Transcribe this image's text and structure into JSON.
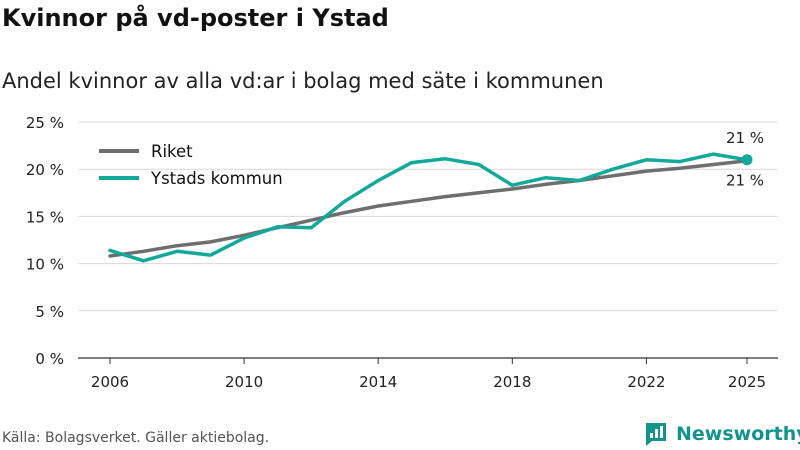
{
  "header": {
    "title": "Kvinnor på vd-poster i Ystad",
    "subtitle": "Andel kvinnor av alla vd:ar i bolag med säte i kommunen"
  },
  "footer": {
    "source": "Källa: Bolagsverket. Gäller aktiebolag.",
    "brand": "Newsworthy",
    "brand_icon": "newsworthy-logo-icon",
    "brand_color": "#12948a"
  },
  "chart_data": {
    "type": "line",
    "title": "Kvinnor på vd-poster i Ystad",
    "subtitle": "Andel kvinnor av alla vd:ar i bolag med säte i kommunen",
    "xlabel": "",
    "ylabel": "",
    "ylim": [
      0,
      25
    ],
    "xlim": [
      2006,
      2025
    ],
    "yticks": [
      0,
      5,
      10,
      15,
      20,
      25
    ],
    "ytick_labels": [
      "0 %",
      "5 %",
      "10 %",
      "15 %",
      "20 %",
      "25 %"
    ],
    "xticks": [
      2006,
      2010,
      2014,
      2018,
      2022,
      2025
    ],
    "xtick_labels": [
      "2006",
      "2010",
      "2014",
      "2018",
      "2022",
      "2025"
    ],
    "grid": true,
    "legend": "top-left",
    "x": [
      2006,
      2007,
      2008,
      2009,
      2010,
      2011,
      2012,
      2013,
      2014,
      2015,
      2016,
      2017,
      2018,
      2019,
      2020,
      2021,
      2022,
      2023,
      2024,
      2025
    ],
    "series": [
      {
        "name": "Riket",
        "color": "#6e6e6e",
        "values": [
          10.8,
          11.3,
          11.9,
          12.3,
          13.0,
          13.8,
          14.6,
          15.4,
          16.1,
          16.6,
          17.1,
          17.5,
          17.9,
          18.4,
          18.8,
          19.3,
          19.8,
          20.1,
          20.5,
          20.9
        ]
      },
      {
        "name": "Ystads kommun",
        "color": "#12a99b",
        "values": [
          11.4,
          10.3,
          11.3,
          10.9,
          12.7,
          13.9,
          13.8,
          16.6,
          18.8,
          20.7,
          21.1,
          20.5,
          18.3,
          19.1,
          18.8,
          20.0,
          21.0,
          20.8,
          21.6,
          21.0
        ]
      }
    ],
    "annotations": [
      {
        "series": "Ystads kommun",
        "x": 2025,
        "label": "21 %",
        "position": "above"
      },
      {
        "series": "Riket",
        "x": 2025,
        "label": "21 %",
        "position": "below"
      }
    ]
  }
}
